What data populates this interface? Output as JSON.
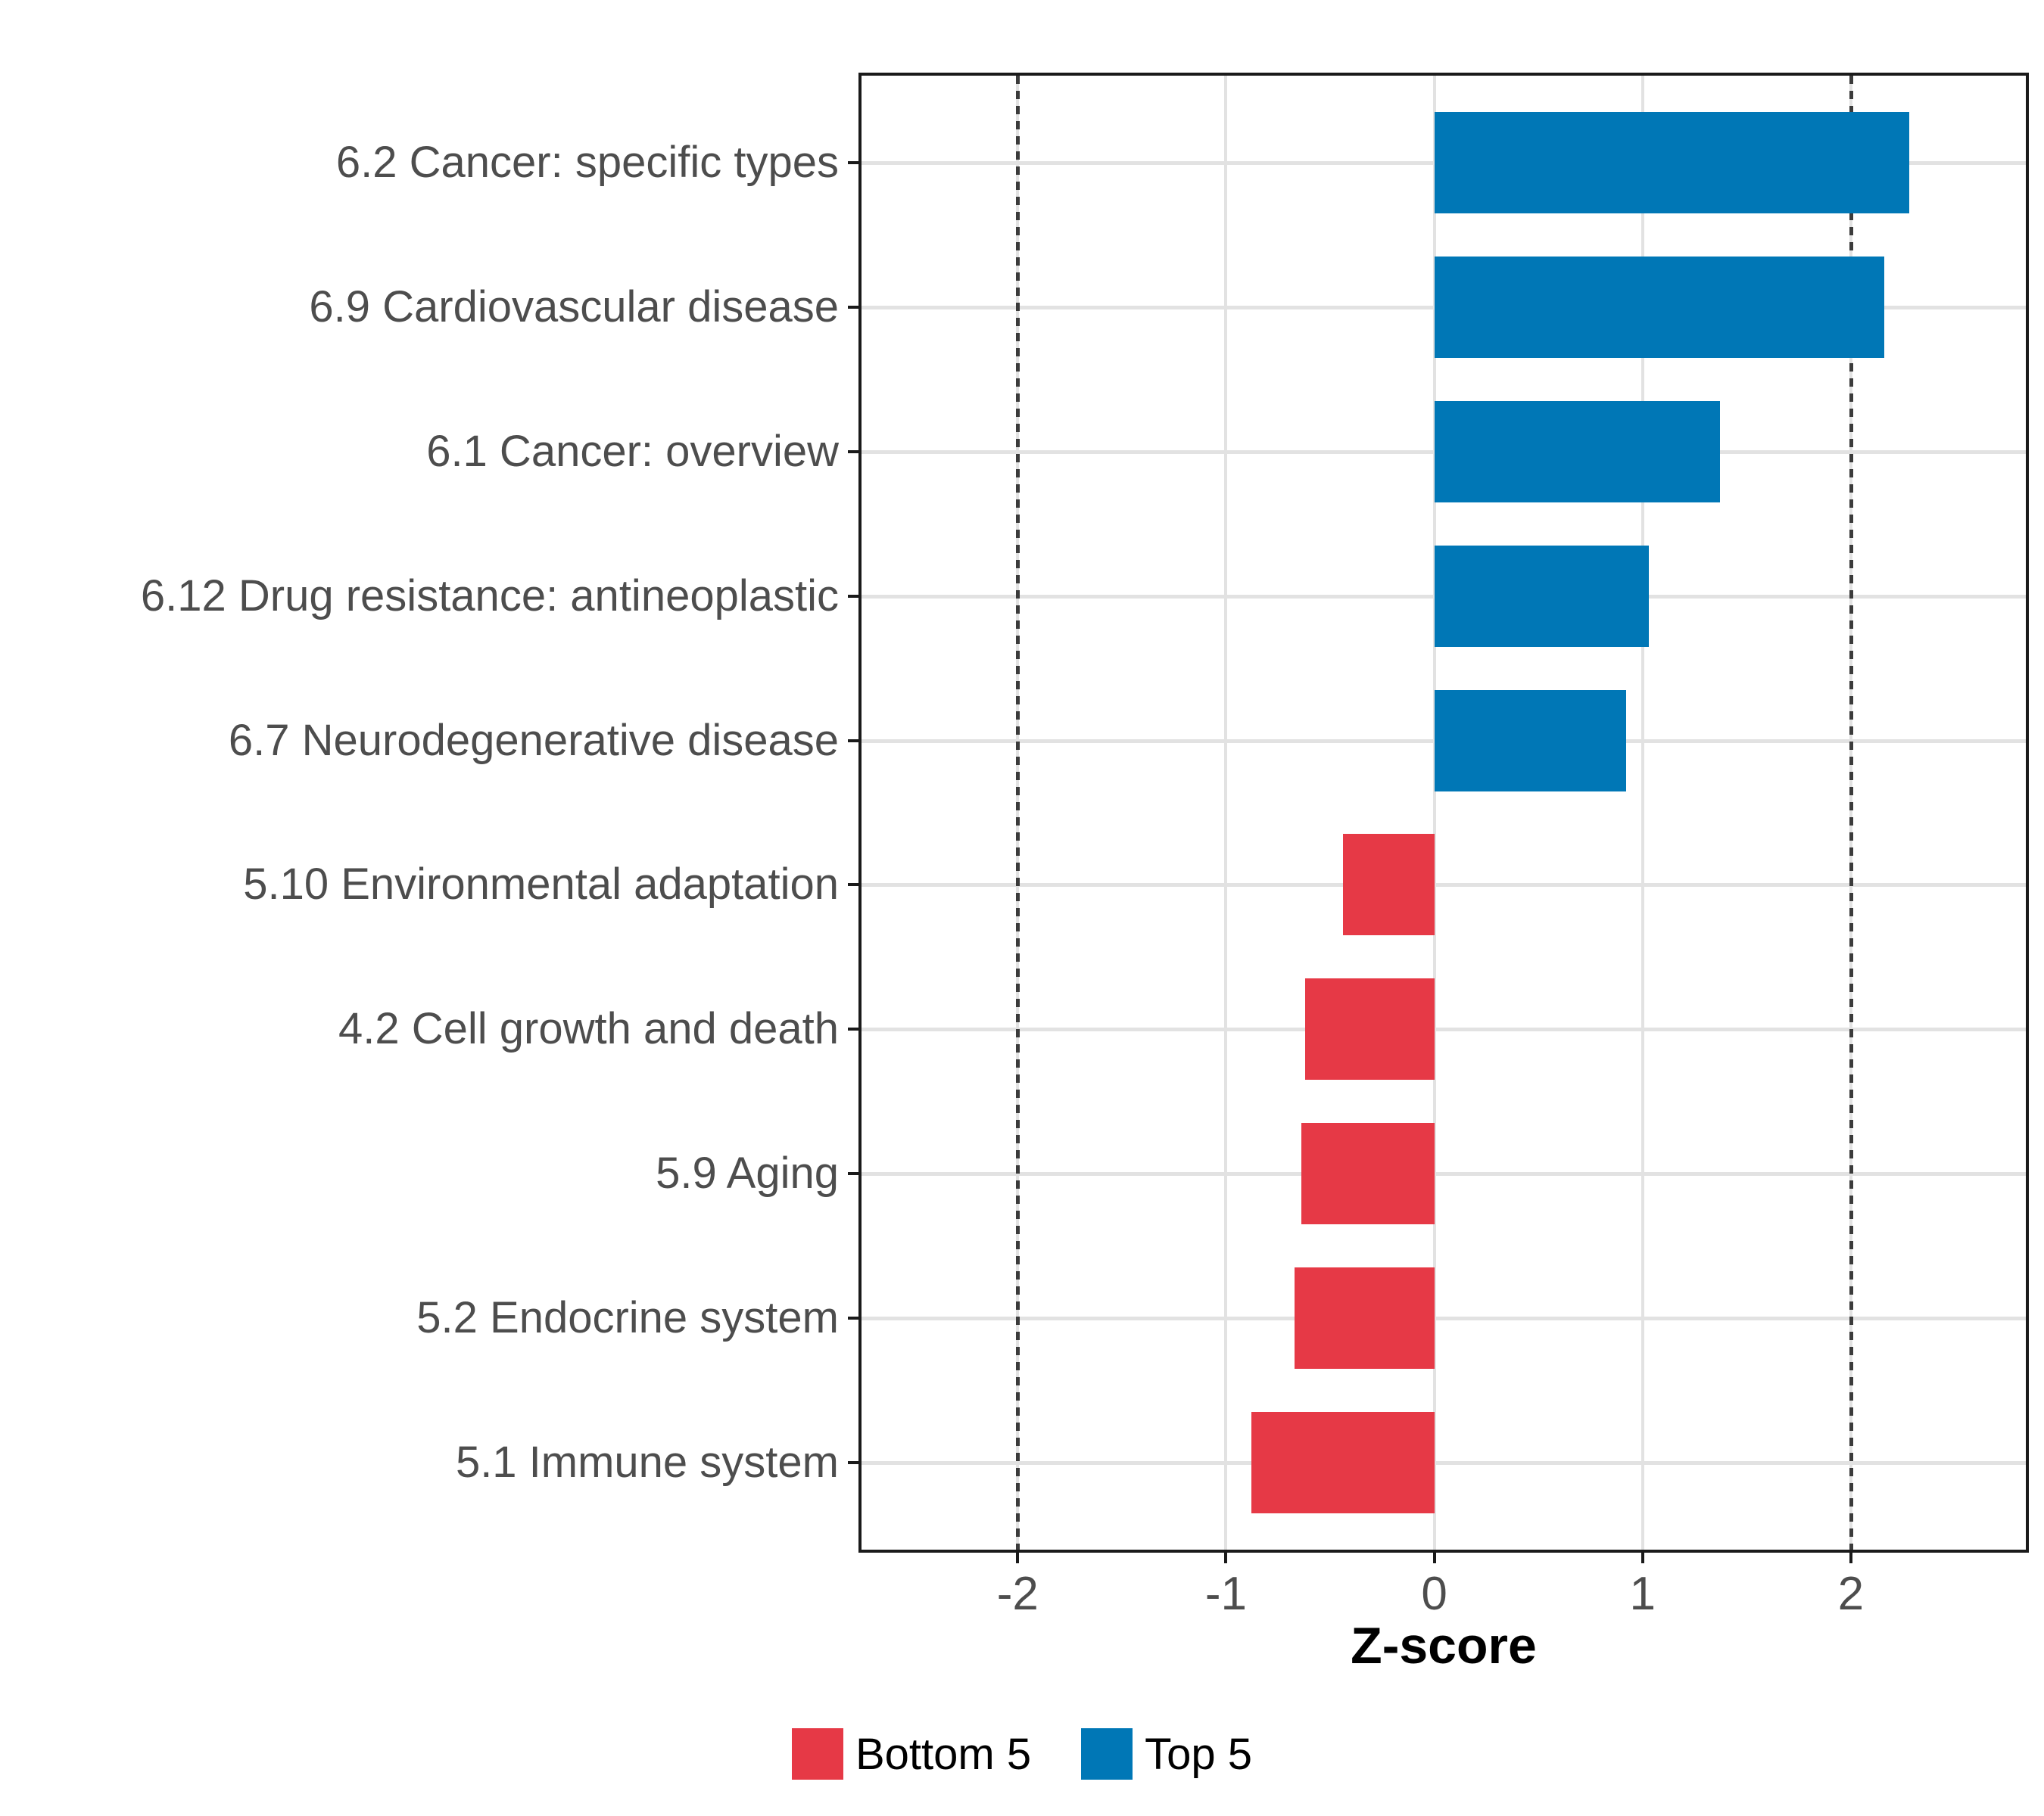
{
  "chart_data": {
    "type": "bar",
    "orientation": "horizontal",
    "title": "",
    "xlabel": "Z-score",
    "ylabel": "",
    "categories": [
      "6.2 Cancer: specific types",
      "6.9 Cardiovascular disease",
      "6.1 Cancer: overview",
      "6.12 Drug resistance: antineoplastic",
      "6.7 Neurodegenerative disease",
      "5.10 Environmental adaptation",
      "4.2 Cell growth and death",
      "5.9 Aging",
      "5.2 Endocrine system",
      "5.1 Immune system"
    ],
    "values": [
      2.28,
      2.16,
      1.37,
      1.03,
      0.92,
      -0.44,
      -0.62,
      -0.64,
      -0.67,
      -0.88
    ],
    "groups": [
      "Top 5",
      "Top 5",
      "Top 5",
      "Top 5",
      "Top 5",
      "Bottom 5",
      "Bottom 5",
      "Bottom 5",
      "Bottom 5",
      "Bottom 5"
    ],
    "x_ticks": [
      -2,
      -1,
      0,
      1,
      2
    ],
    "xlim": [
      -2.75,
      2.84
    ],
    "reference_lines": [
      -2,
      2
    ],
    "legend": [
      {
        "label": "Bottom 5",
        "color": "#E63946"
      },
      {
        "label": "Top 5",
        "color": "#0077B6"
      }
    ],
    "colors": {
      "Top 5": "#0077B6",
      "Bottom 5": "#E63946"
    },
    "style": {
      "grid_color": "#E2E2E2",
      "panel_border_color": "#1a1a1a",
      "axis_text_color": "#4D4D4D",
      "reference_line_color": "#3b3b3b",
      "grid": "on",
      "legend_position": "bottom"
    }
  }
}
